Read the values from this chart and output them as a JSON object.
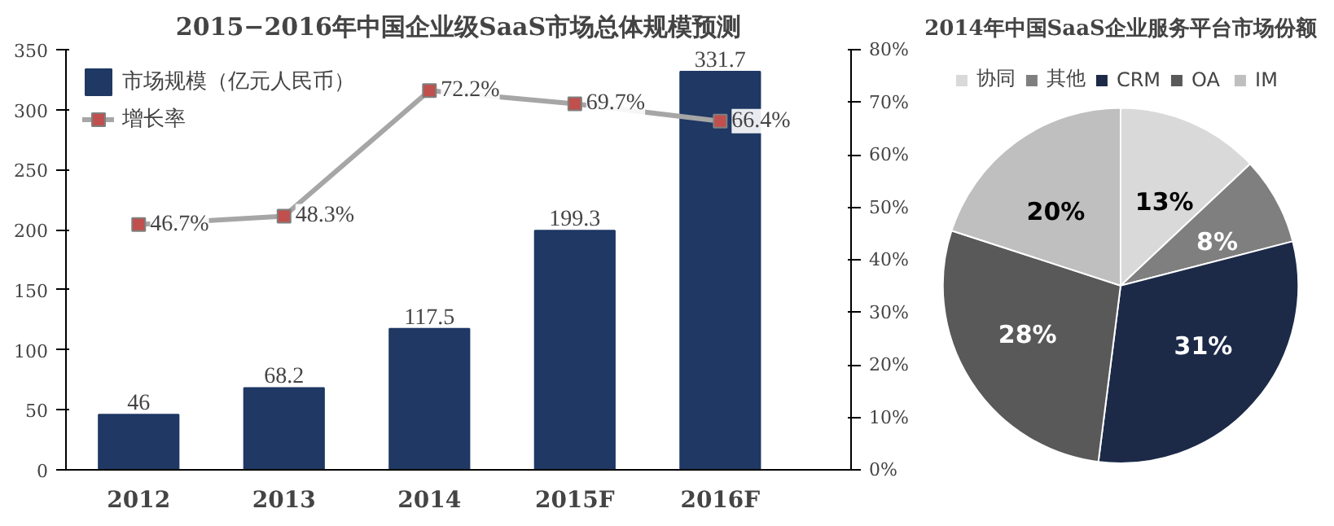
{
  "chart_data": [
    {
      "type": "bar",
      "title": "2015−2016年中国企业级SaaS市场总体规模预测",
      "categories": [
        "2012",
        "2013",
        "2014",
        "2015F",
        "2016F"
      ],
      "series": [
        {
          "name": "市场规模（亿元人民币）",
          "type": "bar",
          "color": "#1f3864",
          "values": [
            46,
            68.2,
            117.5,
            199.3,
            331.7
          ],
          "data_labels": true
        },
        {
          "name": "增长率",
          "type": "line",
          "axis": "y2",
          "color": "#a6a6a6",
          "values": [
            46.7,
            48.3,
            72.2,
            69.7,
            66.4
          ],
          "value_labels": [
            "46.7%",
            "48.3%",
            "72.2%",
            "69.7%",
            "66.4%"
          ],
          "marker": "square"
        }
      ],
      "ylim": [
        0,
        350
      ],
      "yticks": [
        0,
        50,
        100,
        150,
        200,
        250,
        300,
        350
      ],
      "y2lim": [
        0,
        80
      ],
      "y2ticks": [
        {
          "value": 0,
          "label": "0%"
        },
        {
          "value": 10,
          "label": "10%"
        },
        {
          "value": 20,
          "label": "20%"
        },
        {
          "value": 30,
          "label": "30%"
        },
        {
          "value": 40,
          "label": "40%"
        },
        {
          "value": 50,
          "label": "50%"
        },
        {
          "value": 60,
          "label": "60%"
        },
        {
          "value": 70,
          "label": "70%"
        },
        {
          "value": 80,
          "label": "80%"
        }
      ],
      "grid": false,
      "legend": "top left"
    },
    {
      "type": "pie",
      "title": "2014年中国SaaS企业服务平台市场份额",
      "categories": [
        "协同",
        "其他",
        "CRM",
        "OA",
        "IM"
      ],
      "values": [
        13,
        8,
        31,
        28,
        20
      ],
      "colors": [
        "#d9d9d9",
        "#7f7f7f",
        "#1c2a48",
        "#595959",
        "#bfbfbf"
      ],
      "value_labels": [
        "13%",
        "8%",
        "31%",
        "28%",
        "20%"
      ],
      "legend": "top"
    }
  ]
}
